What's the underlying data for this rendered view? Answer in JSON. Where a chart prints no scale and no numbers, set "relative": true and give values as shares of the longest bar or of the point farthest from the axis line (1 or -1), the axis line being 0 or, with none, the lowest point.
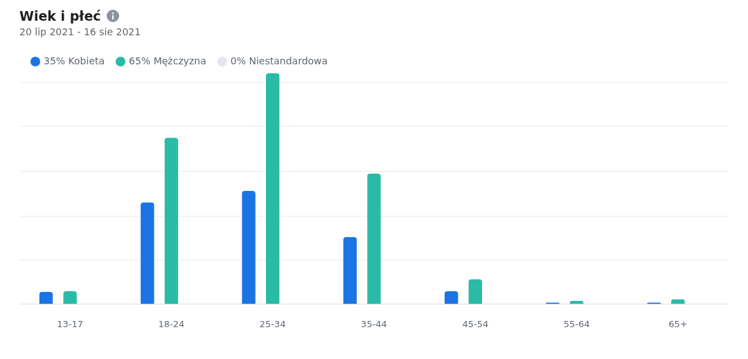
{
  "chart_data": {
    "type": "bar",
    "title": "Wiek i płeć",
    "subtitle": "20 lip 2021 - 16 sie 2021",
    "relative": true,
    "grid": true,
    "legend": "top left",
    "categories": [
      "13-17",
      "18-24",
      "25-34",
      "35-44",
      "45-54",
      "55-64",
      "65+"
    ],
    "series": [
      {
        "name": "35% Kobieta",
        "color": "#1b74e4",
        "values": [
          0.052,
          0.44,
          0.49,
          0.29,
          0.055,
          0.006,
          0.006
        ]
      },
      {
        "name": "65% Mężczyzna",
        "color": "#2abba7",
        "values": [
          0.055,
          0.72,
          1,
          0.565,
          0.107,
          0.013,
          0.02
        ]
      },
      {
        "name": "0% Niestandardowa",
        "color": "#e4e6eb",
        "values": [
          0,
          0,
          0,
          0,
          0,
          0,
          0
        ]
      }
    ]
  }
}
